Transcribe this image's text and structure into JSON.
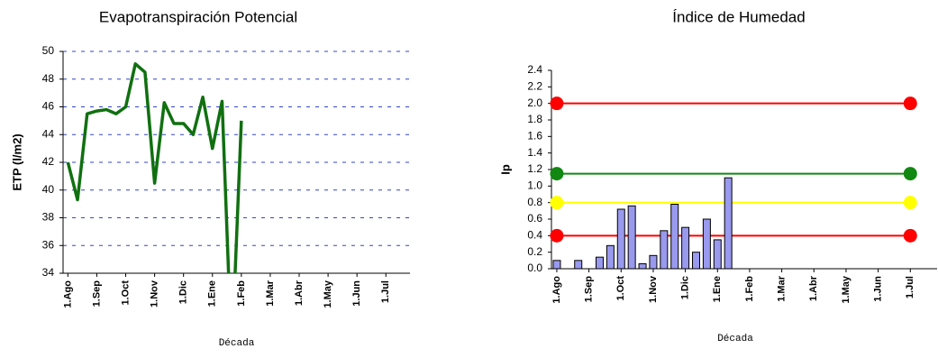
{
  "chart_data": [
    {
      "type": "line",
      "title": "Evapotranspiración Potencial",
      "y_label": "ETP (l/m2)",
      "x_label": "Década",
      "categories": [
        "1.Ago",
        null,
        null,
        "1.Sep",
        null,
        null,
        "1.Oct",
        null,
        null,
        "1.Nov",
        null,
        null,
        "1.Dic",
        null,
        null,
        "1.Ene",
        null,
        null,
        "1.Feb",
        null,
        null,
        "1.Mar",
        null,
        null,
        "1.Abr",
        null,
        null,
        "1.May",
        null,
        null,
        "1.Jun",
        null,
        null,
        "1.Jul",
        null,
        null
      ],
      "series": [
        {
          "color": "#107010",
          "values": [
            42,
            39.3,
            45.5,
            45.7,
            45.8,
            45.5,
            46,
            49.1,
            48.5,
            40.5,
            46.3,
            44.8,
            44.8,
            44,
            46.7,
            43,
            46.4,
            28,
            45,
            null,
            null,
            null,
            null,
            null,
            null,
            null,
            null,
            null,
            null,
            null,
            null,
            null,
            null,
            null,
            null,
            null
          ]
        }
      ],
      "ylim": [
        34,
        50
      ],
      "yticks": [
        34,
        36,
        38,
        40,
        42,
        44,
        46,
        48,
        50
      ],
      "grid": true
    },
    {
      "type": "bar",
      "title": "Índice de Humedad",
      "y_label": "Ip",
      "x_label": "Década",
      "categories": [
        "1.Ago",
        null,
        null,
        "1.Sep",
        null,
        null,
        "1.Oct",
        null,
        null,
        "1.Nov",
        null,
        null,
        "1.Dic",
        null,
        null,
        "1.Ene",
        null,
        null,
        "1.Feb",
        null,
        null,
        "1.Mar",
        null,
        null,
        "1.Abr",
        null,
        null,
        "1.May",
        null,
        null,
        "1.Jun",
        null,
        null,
        "1.Jul",
        null,
        null
      ],
      "series": [
        {
          "color": "#9999ee",
          "values": [
            0.1,
            0,
            0.1,
            0,
            0.14,
            0.28,
            0.72,
            0.76,
            0.06,
            0.16,
            0.46,
            0.78,
            0.5,
            0.2,
            0.6,
            0.35,
            1.1,
            null,
            null,
            null,
            null,
            null,
            null,
            null,
            null,
            null,
            null,
            null,
            null,
            null,
            null,
            null,
            null,
            null,
            null,
            null
          ]
        }
      ],
      "thresholds": [
        {
          "value": 2,
          "color": "#ff0000"
        },
        {
          "value": 1.15,
          "color": "#118811"
        },
        {
          "value": 0.8,
          "color": "#ffff00"
        },
        {
          "value": 0.4,
          "color": "#ff0000"
        }
      ],
      "ylim": [
        0,
        2.4
      ],
      "yticks": [
        {
          "value": 0,
          "label": "0.0"
        },
        0.2,
        0.4,
        0.6,
        0.8,
        {
          "value": 1,
          "label": "1.0"
        },
        1.2,
        1.4,
        1.6,
        1.8,
        {
          "value": 2,
          "label": "2.0"
        },
        2.2,
        2.4
      ],
      "grid": false
    }
  ]
}
